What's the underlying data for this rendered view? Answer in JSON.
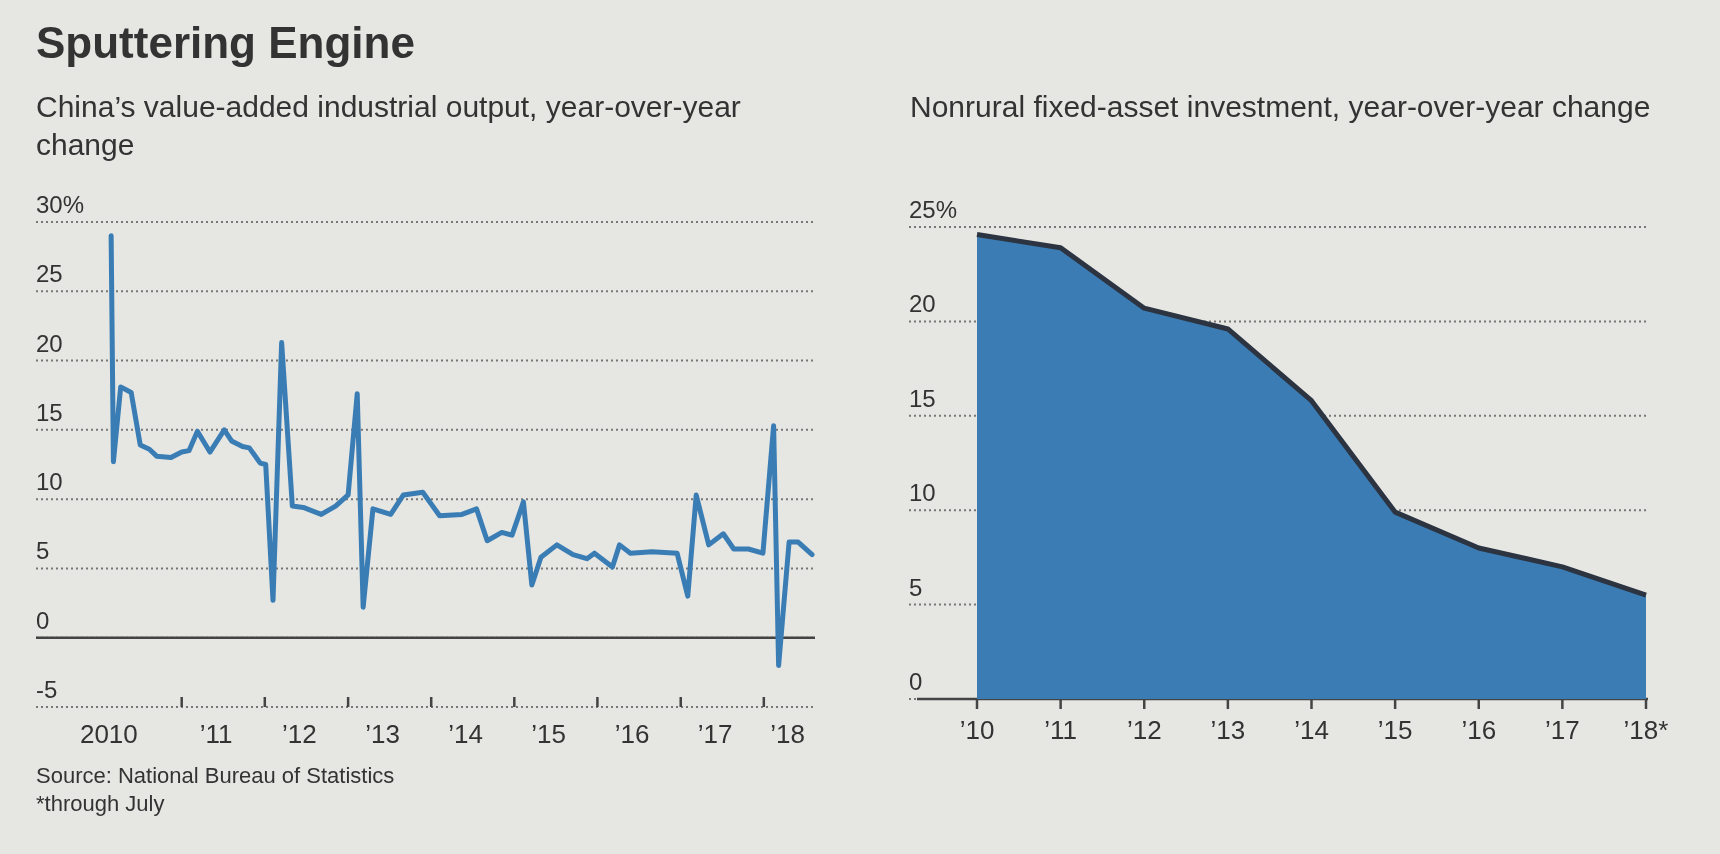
{
  "chart_data": [
    {
      "type": "line",
      "title": "Sputtering Engine",
      "subtitle": "China’s value-added industrial output, year-over-year change",
      "x": [
        "2010-02-25",
        "2010-03-07",
        "2010-04-08",
        "2010-05-24",
        "2010-07-03",
        "2010-08-12",
        "2010-09-13",
        "2010-11-15",
        "2011-01-01",
        "2011-02-02",
        "2011-03-11",
        "2011-05-05",
        "2011-07-07",
        "2011-08-08",
        "2011-09-25",
        "2011-10-25",
        "2011-12-12",
        "2012-01-05",
        "2012-02-06",
        "2012-03-15",
        "2012-05-01",
        "2012-06-18",
        "2012-09-05",
        "2012-11-07",
        "2013-01-01",
        "2013-02-10",
        "2013-03-08",
        "2013-04-20",
        "2013-07-07",
        "2013-09-01",
        "2013-11-25",
        "2014-02-07",
        "2014-05-16",
        "2014-07-19",
        "2014-09-04",
        "2014-11-07",
        "2014-12-22",
        "2015-02-10",
        "2015-03-19",
        "2015-04-28",
        "2015-07-07",
        "2015-09-16",
        "2015-11-16",
        "2015-12-19",
        "2016-03-07",
        "2016-04-07",
        "2016-05-25",
        "2016-08-28",
        "2016-12-16",
        "2017-02-01",
        "2017-03-10",
        "2017-05-04",
        "2017-07-07",
        "2017-08-22",
        "2017-10-25",
        "2017-12-28",
        "2018-02-13",
        "2018-03-07",
        "2018-04-22",
        "2018-06-01",
        "2018-08-01"
      ],
      "series": [
        {
          "color": "#3a7db5",
          "values": [
            29.0,
            12.7,
            18.1,
            17.7,
            13.9,
            13.6,
            13.1,
            13.0,
            13.4,
            13.5,
            14.9,
            13.4,
            15.0,
            14.2,
            13.8,
            13.7,
            12.6,
            12.5,
            2.7,
            21.3,
            9.5,
            9.4,
            8.9,
            9.5,
            10.3,
            17.6,
            2.2,
            9.3,
            8.9,
            10.3,
            10.5,
            8.8,
            8.9,
            9.3,
            7.0,
            7.6,
            7.4,
            9.8,
            3.8,
            5.8,
            6.7,
            6.0,
            5.7,
            6.1,
            5.1,
            6.7,
            6.1,
            6.2,
            6.1,
            3.0,
            10.3,
            6.7,
            7.5,
            6.4,
            6.4,
            6.1,
            15.3,
            -2.0,
            6.9,
            6.9,
            6.0
          ]
        }
      ],
      "xlim": [
        "2009-04-01",
        "2018-08-05"
      ],
      "xticks": [
        {
          "value": "2011-01-01",
          "label": null
        },
        {
          "value": "2012-01-01",
          "label": null
        },
        {
          "value": "2013-01-01",
          "label": null
        },
        {
          "value": "2014-01-01",
          "label": null
        },
        {
          "value": "2015-01-01",
          "label": null
        },
        {
          "value": "2016-01-01",
          "label": null
        },
        {
          "value": "2017-01-01",
          "label": null
        },
        {
          "value": "2018-01-01",
          "label": null
        },
        {
          "value": "2010-02-15",
          "label": "2010"
        },
        {
          "value": "2011-06-01",
          "label": "’11"
        },
        {
          "value": "2012-06-01",
          "label": "’12"
        },
        {
          "value": "2013-06-01",
          "label": "’13"
        },
        {
          "value": "2014-06-01",
          "label": "’14"
        },
        {
          "value": "2015-06-01",
          "label": "’15"
        },
        {
          "value": "2016-06-01",
          "label": "’16"
        },
        {
          "value": "2017-06-01",
          "label": "’17"
        },
        {
          "value": "2018-04-15",
          "label": "’18"
        }
      ],
      "ylim": [
        -5,
        30
      ],
      "yticks": [
        -5,
        0,
        5,
        10,
        15,
        20,
        25,
        {
          "value": 30,
          "label": "30%"
        }
      ],
      "grid": "y",
      "annotations": [
        "Source: National Bureau of Statistics",
        "*through July"
      ]
    },
    {
      "type": "area",
      "subtitle": "Nonrural fixed-asset investment, year-over-year change",
      "categories": [
        "’10",
        "’11",
        "’12",
        "’13",
        "’14",
        "’15",
        "’16",
        "’17",
        "’18*"
      ],
      "series": [
        {
          "color": "#3b7cb4",
          "values": [
            24.6,
            23.9,
            20.7,
            19.6,
            15.8,
            9.9,
            8.0,
            7.0,
            5.5
          ]
        }
      ],
      "ylim": [
        0,
        25
      ],
      "yticks": [
        0,
        5,
        10,
        15,
        20,
        {
          "value": 25,
          "label": "25%"
        }
      ],
      "grid": "y"
    }
  ]
}
